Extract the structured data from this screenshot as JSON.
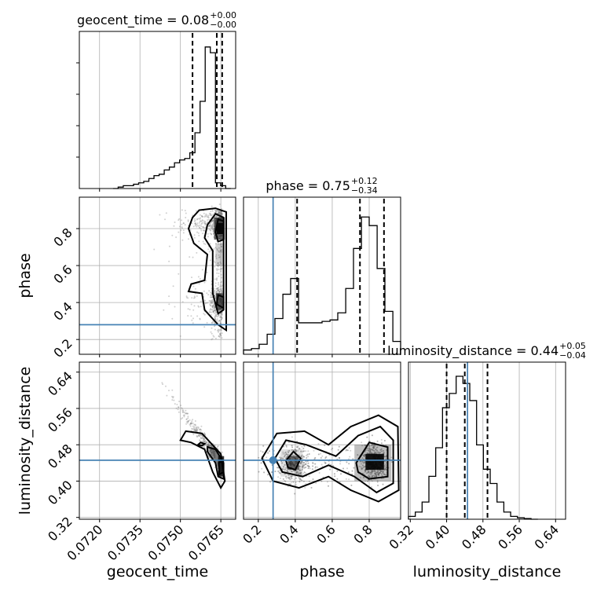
{
  "chart_data": {
    "type": "scatter",
    "subtype": "corner-plot",
    "parameters": [
      "geocent_time",
      "phase",
      "luminosity_distance"
    ],
    "axis_labels": [
      "geocent_time",
      "phase",
      "luminosity_distance"
    ],
    "titles": [
      {
        "name": "geocent_time",
        "value": "0.08",
        "plus": "+0.00",
        "minus": "−0.00"
      },
      {
        "name": "phase",
        "value": "0.75",
        "plus": "+0.12",
        "minus": "−0.34"
      },
      {
        "name": "luminosity_distance",
        "value": "0.44",
        "plus": "+0.05",
        "minus": "−0.04"
      }
    ],
    "ranges": {
      "geocent_time": [
        0.07125,
        0.07705
      ],
      "phase": [
        0.12,
        0.97
      ],
      "luminosity_distance": [
        0.316,
        0.662
      ]
    },
    "ticks": {
      "geocent_time": [
        0.072,
        0.0735,
        0.075,
        0.0765
      ],
      "phase": [
        0.2,
        0.4,
        0.6,
        0.8
      ],
      "luminosity_distance": [
        0.32,
        0.4,
        0.48,
        0.56,
        0.64
      ]
    },
    "tick_labels": {
      "geocent_time": [
        "0.0720",
        "0.0735",
        "0.0750",
        "0.0765"
      ],
      "phase": [
        "0.2",
        "0.4",
        "0.6",
        "0.8"
      ],
      "luminosity_distance": [
        "0.32",
        "0.40",
        "0.48",
        "0.56",
        "0.64"
      ]
    },
    "truths": {
      "geocent_time": null,
      "phase": 0.28,
      "luminosity_distance": 0.446
    },
    "truth_color": "#4682b4",
    "quantiles": {
      "geocent_time": [
        0.07545,
        0.07635,
        0.07655
      ],
      "phase": [
        0.41,
        0.75,
        0.88
      ],
      "luminosity_distance": [
        0.4,
        0.44,
        0.49
      ]
    },
    "histograms": {
      "geocent_time": {
        "edges": [
          0.0725,
          0.07269,
          0.07288,
          0.07307,
          0.07326,
          0.07345,
          0.07364,
          0.07383,
          0.07402,
          0.07421,
          0.0744,
          0.07459,
          0.07478,
          0.07497,
          0.07516,
          0.07535,
          0.07554,
          0.07573,
          0.07592,
          0.07611,
          0.0763,
          0.07649,
          0.07668,
          0.07687
        ],
        "counts": [
          0,
          0.01,
          0.02,
          0.02,
          0.03,
          0.04,
          0.05,
          0.07,
          0.09,
          0.1,
          0.13,
          0.15,
          0.18,
          0.2,
          0.21,
          0.25,
          0.39,
          0.61,
          0.99,
          0.95,
          0.04,
          0.02,
          0
        ]
      },
      "phase": {
        "edges": [
          0.12,
          0.163,
          0.205,
          0.248,
          0.29,
          0.333,
          0.375,
          0.418,
          0.46,
          0.503,
          0.545,
          0.588,
          0.63,
          0.673,
          0.715,
          0.758,
          0.8,
          0.843,
          0.885,
          0.928,
          0.97
        ],
        "counts": [
          0.03,
          0.04,
          0.07,
          0.14,
          0.25,
          0.42,
          0.53,
          0.22,
          0.22,
          0.22,
          0.23,
          0.24,
          0.29,
          0.46,
          0.74,
          0.96,
          0.9,
          0.6,
          0.3,
          0.09
        ]
      },
      "luminosity_distance": {
        "edges": [
          0.316,
          0.331,
          0.346,
          0.361,
          0.376,
          0.391,
          0.406,
          0.421,
          0.436,
          0.451,
          0.466,
          0.481,
          0.496,
          0.511,
          0.526,
          0.541,
          0.556,
          0.571,
          0.586,
          0.601
        ],
        "counts": [
          0.02,
          0.05,
          0.12,
          0.3,
          0.5,
          0.78,
          0.88,
          1.0,
          0.95,
          0.83,
          0.52,
          0.35,
          0.25,
          0.12,
          0.05,
          0.02,
          0.01,
          0.005,
          0
        ]
      }
    },
    "grid": true,
    "contour_color": "#000000",
    "sample_color": "#808080"
  }
}
